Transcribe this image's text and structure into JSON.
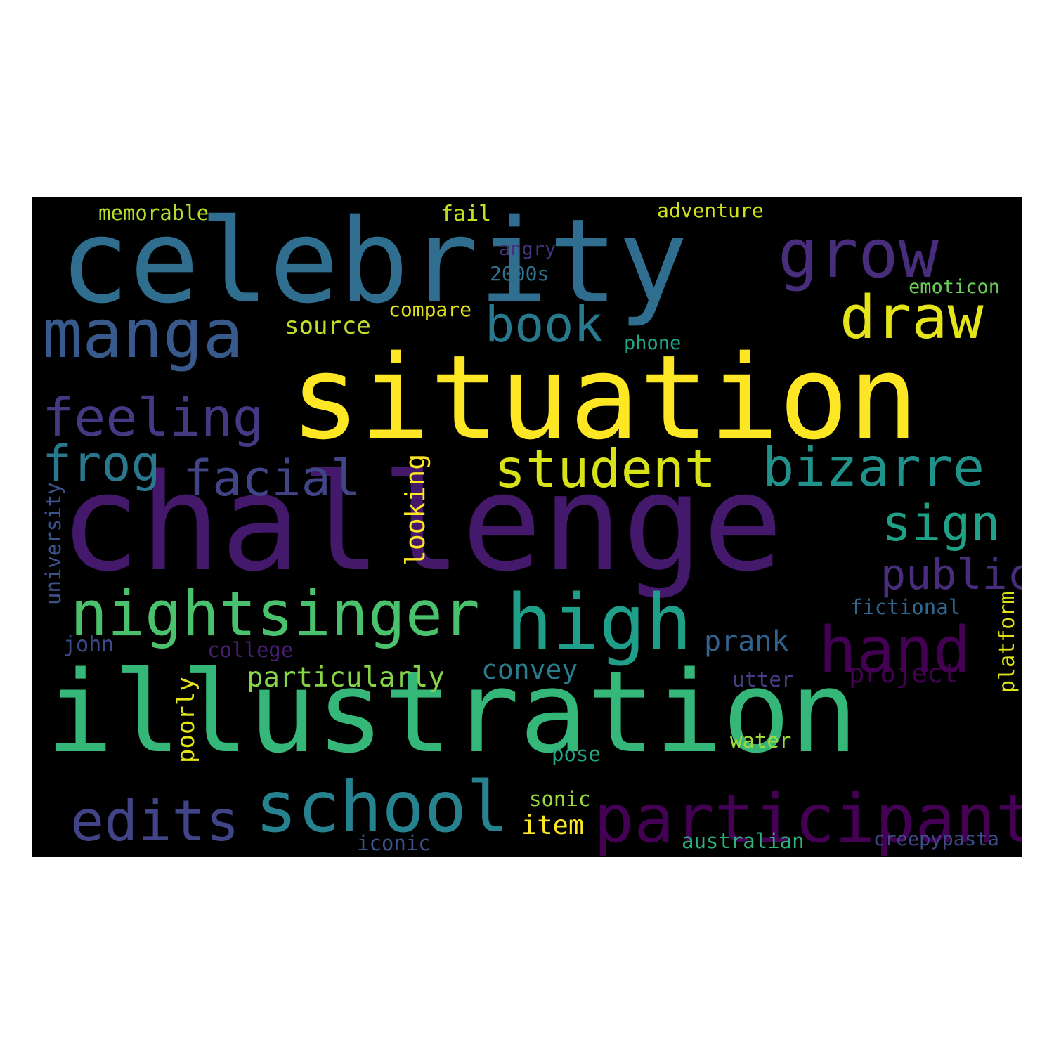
{
  "word_cloud": {
    "background": "#000000",
    "palette": "viridis",
    "words": [
      {
        "text": "celebrity",
        "color": "#2f6e8e"
      },
      {
        "text": "situation",
        "color": "#fde725"
      },
      {
        "text": "challenge",
        "color": "#44186a"
      },
      {
        "text": "illustration",
        "color": "#35b779"
      },
      {
        "text": "manga",
        "color": "#38598c"
      },
      {
        "text": "grow",
        "color": "#472d7b"
      },
      {
        "text": "draw",
        "color": "#e4e419"
      },
      {
        "text": "book",
        "color": "#2a788e"
      },
      {
        "text": "feeling",
        "color": "#443983"
      },
      {
        "text": "frog",
        "color": "#2a788e"
      },
      {
        "text": "facial",
        "color": "#414487"
      },
      {
        "text": "student",
        "color": "#d8e219"
      },
      {
        "text": "bizarre",
        "color": "#21918c"
      },
      {
        "text": "sign",
        "color": "#1fa188"
      },
      {
        "text": "public",
        "color": "#472d7b"
      },
      {
        "text": "nightsinger",
        "color": "#4ac16d"
      },
      {
        "text": "high",
        "color": "#1f9e89"
      },
      {
        "text": "hand",
        "color": "#440154"
      },
      {
        "text": "school",
        "color": "#26828e"
      },
      {
        "text": "edits",
        "color": "#414487"
      },
      {
        "text": "participant",
        "color": "#440154"
      },
      {
        "text": "memorable",
        "color": "#b5de2b"
      },
      {
        "text": "fail",
        "color": "#c2df23"
      },
      {
        "text": "adventure",
        "color": "#d0e11c"
      },
      {
        "text": "angry",
        "color": "#46327e"
      },
      {
        "text": "2000s",
        "color": "#2c728e"
      },
      {
        "text": "emoticon",
        "color": "#6ccd5a"
      },
      {
        "text": "compare",
        "color": "#e5e419"
      },
      {
        "text": "source",
        "color": "#bddf26"
      },
      {
        "text": "phone",
        "color": "#20a486"
      },
      {
        "text": "looking",
        "color": "#fde725"
      },
      {
        "text": "university",
        "color": "#3b528b"
      },
      {
        "text": "fictional",
        "color": "#31688e"
      },
      {
        "text": "platform",
        "color": "#dde318"
      },
      {
        "text": "prank",
        "color": "#33638d"
      },
      {
        "text": "john",
        "color": "#3e4989"
      },
      {
        "text": "college",
        "color": "#481f70"
      },
      {
        "text": "poorly",
        "color": "#e2e418"
      },
      {
        "text": "particularly",
        "color": "#86d549"
      },
      {
        "text": "convey",
        "color": "#287c8e"
      },
      {
        "text": "project",
        "color": "#440154"
      },
      {
        "text": "utter",
        "color": "#433e85"
      },
      {
        "text": "water",
        "color": "#a0da39"
      },
      {
        "text": "pose",
        "color": "#22a884"
      },
      {
        "text": "sonic",
        "color": "#9bd93c"
      },
      {
        "text": "item",
        "color": "#fde725"
      },
      {
        "text": "iconic",
        "color": "#3b528b"
      },
      {
        "text": "australian",
        "color": "#2db27d"
      },
      {
        "text": "creepypasta",
        "color": "#3e4a89"
      }
    ]
  }
}
